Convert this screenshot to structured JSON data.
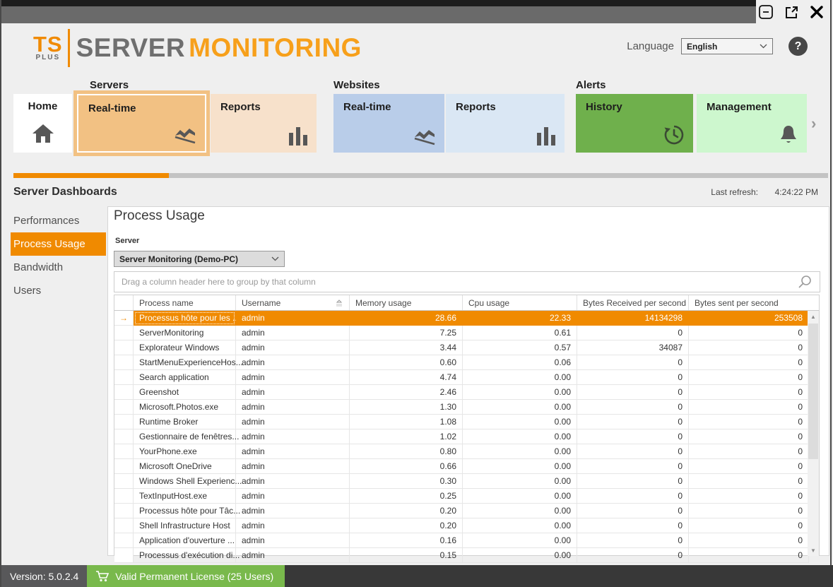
{
  "header": {
    "logo_ts": "TS",
    "logo_plus": "PLUS",
    "logo_server": "SERVER",
    "logo_monitoring": "MONITORING",
    "language_label": "Language",
    "language_value": "English"
  },
  "nav": {
    "home_label": "Home",
    "groups": [
      {
        "label": "Servers",
        "tiles": [
          {
            "label": "Real-time",
            "selected": true
          },
          {
            "label": "Reports",
            "selected": false
          }
        ]
      },
      {
        "label": "Websites",
        "tiles": [
          {
            "label": "Real-time",
            "selected": false
          },
          {
            "label": "Reports",
            "selected": false
          }
        ]
      },
      {
        "label": "Alerts",
        "tiles": [
          {
            "label": "History",
            "selected": false
          },
          {
            "label": "Management",
            "selected": false
          }
        ]
      }
    ]
  },
  "dashboards_bar": {
    "title": "Server Dashboards",
    "last_refresh_label": "Last refresh:",
    "last_refresh_time": "4:24:22 PM"
  },
  "sidebar": {
    "items": [
      {
        "label": "Performances",
        "selected": false
      },
      {
        "label": "Process Usage",
        "selected": true
      },
      {
        "label": "Bandwidth",
        "selected": false
      },
      {
        "label": "Users",
        "selected": false
      }
    ]
  },
  "content": {
    "title": "Process Usage",
    "server_label": "Server",
    "server_dropdown_value": "Server Monitoring (Demo-PC)",
    "group_panel_hint": "Drag a column header here to group by that column"
  },
  "table": {
    "columns": [
      "Process name",
      "Username",
      "Memory usage",
      "Cpu usage",
      "Bytes Received per second",
      "Bytes sent per second"
    ],
    "sorted_column": "Username",
    "sort_direction": "ascending",
    "rows": [
      {
        "process": "Processus hôte pour les ...",
        "username": "admin",
        "memory": "28.66",
        "cpu": "22.33",
        "bytes_received": "14134298",
        "bytes_sent": "253508",
        "selected": true
      },
      {
        "process": "ServerMonitoring",
        "username": "admin",
        "memory": "7.25",
        "cpu": "0.61",
        "bytes_received": "0",
        "bytes_sent": "0"
      },
      {
        "process": "Explorateur Windows",
        "username": "admin",
        "memory": "3.44",
        "cpu": "0.57",
        "bytes_received": "34087",
        "bytes_sent": "0"
      },
      {
        "process": "StartMenuExperienceHos...",
        "username": "admin",
        "memory": "0.60",
        "cpu": "0.06",
        "bytes_received": "0",
        "bytes_sent": "0"
      },
      {
        "process": "Search application",
        "username": "admin",
        "memory": "4.74",
        "cpu": "0.00",
        "bytes_received": "0",
        "bytes_sent": "0"
      },
      {
        "process": "Greenshot",
        "username": "admin",
        "memory": "2.46",
        "cpu": "0.00",
        "bytes_received": "0",
        "bytes_sent": "0"
      },
      {
        "process": "Microsoft.Photos.exe",
        "username": "admin",
        "memory": "1.30",
        "cpu": "0.00",
        "bytes_received": "0",
        "bytes_sent": "0"
      },
      {
        "process": "Runtime Broker",
        "username": "admin",
        "memory": "1.08",
        "cpu": "0.00",
        "bytes_received": "0",
        "bytes_sent": "0"
      },
      {
        "process": "Gestionnaire de fenêtres...",
        "username": "admin",
        "memory": "1.02",
        "cpu": "0.00",
        "bytes_received": "0",
        "bytes_sent": "0"
      },
      {
        "process": "YourPhone.exe",
        "username": "admin",
        "memory": "0.80",
        "cpu": "0.00",
        "bytes_received": "0",
        "bytes_sent": "0"
      },
      {
        "process": "Microsoft OneDrive",
        "username": "admin",
        "memory": "0.66",
        "cpu": "0.00",
        "bytes_received": "0",
        "bytes_sent": "0"
      },
      {
        "process": "Windows Shell Experienc...",
        "username": "admin",
        "memory": "0.30",
        "cpu": "0.00",
        "bytes_received": "0",
        "bytes_sent": "0"
      },
      {
        "process": "TextInputHost.exe",
        "username": "admin",
        "memory": "0.25",
        "cpu": "0.00",
        "bytes_received": "0",
        "bytes_sent": "0"
      },
      {
        "process": "Processus hôte pour Tâc...",
        "username": "admin",
        "memory": "0.20",
        "cpu": "0.00",
        "bytes_received": "0",
        "bytes_sent": "0"
      },
      {
        "process": "Shell Infrastructure Host",
        "username": "admin",
        "memory": "0.20",
        "cpu": "0.00",
        "bytes_received": "0",
        "bytes_sent": "0"
      },
      {
        "process": "Application d'ouverture ...",
        "username": "admin",
        "memory": "0.16",
        "cpu": "0.00",
        "bytes_received": "0",
        "bytes_sent": "0"
      },
      {
        "process": "Processus d'exécution di...",
        "username": "admin",
        "memory": "0.15",
        "cpu": "0.00",
        "bytes_received": "0",
        "bytes_sent": "0",
        "partial": true
      }
    ]
  },
  "statusbar": {
    "version": "Version: 5.0.2.4",
    "license": "Valid Permanent License (25 Users)"
  },
  "colors": {
    "accent_orange": "#F08A00",
    "tile_selected": "#F2C183",
    "tile_peach": "#F7E1CB",
    "tile_blue": "#B9CDE9",
    "tile_blue_light": "#DAE7F4",
    "tile_green": "#6FB04C",
    "tile_green_light": "#CDF7CE",
    "status_green": "#79B94C",
    "titlebar_gray": "#6a6a6a"
  }
}
